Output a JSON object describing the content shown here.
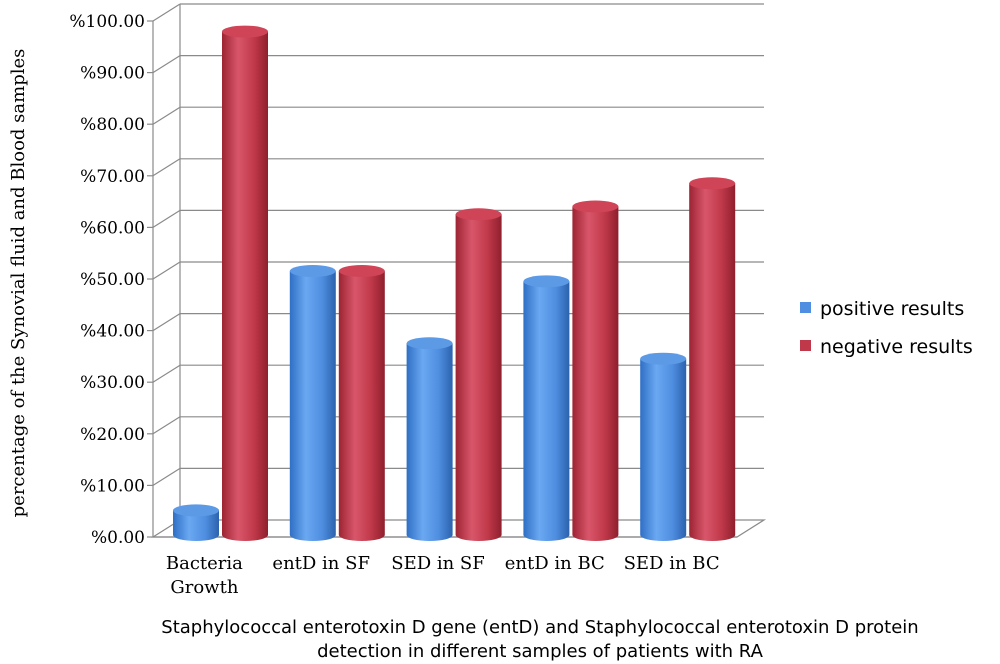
{
  "chart_data": {
    "type": "bar",
    "title": "",
    "ylabel": "percentage of the Synovial fluid and Blood samples",
    "xlabel_lines": [
      "Staphylococcal enterotoxin D gene (entD) and Staphylococcal enterotoxin D protein",
      "detection in  different samples of patients with RA"
    ],
    "categories": [
      [
        "Bacteria",
        "Growth"
      ],
      [
        "entD in SF"
      ],
      [
        "SED in SF"
      ],
      [
        "entD in BC"
      ],
      [
        "SED in BC"
      ]
    ],
    "ylim": [
      0,
      100
    ],
    "yticks": [
      "%0.00",
      "%10.00",
      "%20.00",
      "%30.00",
      "%40.00",
      "%50.00",
      "%60.00",
      "%70.00",
      "%80.00",
      "%90.00",
      "%100.00"
    ],
    "grid": true,
    "legend_position": "right",
    "series": [
      {
        "name": "positive results",
        "color": "#4f8ee0",
        "values": [
          3.6,
          50.0,
          36.0,
          48.0,
          33.0
        ]
      },
      {
        "name": "negative results",
        "color": "#c0394a",
        "values": [
          96.4,
          50.0,
          61.0,
          62.5,
          67.0
        ]
      }
    ]
  }
}
